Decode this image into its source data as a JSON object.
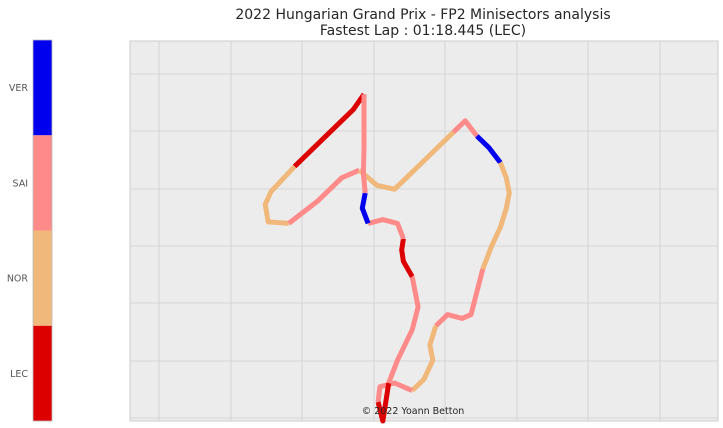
{
  "chart_data": {
    "type": "line",
    "title": "2022 Hungarian Grand Prix - FP2 Minisectors analysis",
    "subtitle": "Fastest Lap : 01:18.445 (LEC)",
    "credit": "© 2022 Yoann Betton",
    "grid": true,
    "legend": {
      "placement": "left colorbar",
      "entries": [
        {
          "name": "VER",
          "color": "#0000ee"
        },
        {
          "name": "SAI",
          "color": "#ff8a8a"
        },
        {
          "name": "NOR",
          "color": "#f0b87a"
        },
        {
          "name": "LEC",
          "color": "#dd0000"
        }
      ]
    },
    "track": {
      "points": [
        [
          39.8,
          7.0
        ],
        [
          38.0,
          9.0
        ],
        [
          34.0,
          12.0
        ],
        [
          28.0,
          16.5
        ],
        [
          24.0,
          19.8
        ],
        [
          23.0,
          21.5
        ],
        [
          23.5,
          23.8
        ],
        [
          27.0,
          24.0
        ],
        [
          32.0,
          21.0
        ],
        [
          36.0,
          18.0
        ],
        [
          39.0,
          17.0
        ],
        [
          42.0,
          19.0
        ],
        [
          45.0,
          19.5
        ],
        [
          47.0,
          18.0
        ],
        [
          51.0,
          15.0
        ],
        [
          55.0,
          12.0
        ],
        [
          57.0,
          10.5
        ],
        [
          58.0,
          11.5
        ],
        [
          59.0,
          12.5
        ],
        [
          61.0,
          14.0
        ],
        [
          63.0,
          16.0
        ],
        [
          64.0,
          18.0
        ],
        [
          64.5,
          20.0
        ],
        [
          64.0,
          22.0
        ],
        [
          63.0,
          24.5
        ],
        [
          61.5,
          27.0
        ],
        [
          60.0,
          30.0
        ],
        [
          59.0,
          33.0
        ],
        [
          58.0,
          36.0
        ],
        [
          56.5,
          36.5
        ],
        [
          54.0,
          36.0
        ],
        [
          52.0,
          37.5
        ],
        [
          51.0,
          40.0
        ],
        [
          51.5,
          42.0
        ],
        [
          50.0,
          44.5
        ],
        [
          48.0,
          46.0
        ],
        [
          45.0,
          45.0
        ],
        [
          42.5,
          45.5
        ],
        [
          42.2,
          47.5
        ],
        [
          43.0,
          50.0
        ],
        [
          43.5,
          47.5
        ],
        [
          44.0,
          45.0
        ],
        [
          45.5,
          42.0
        ],
        [
          48.0,
          38.0
        ],
        [
          49.0,
          35.0
        ],
        [
          48.0,
          31.0
        ],
        [
          46.5,
          29.0
        ],
        [
          46.2,
          27.5
        ],
        [
          46.5,
          26.0
        ],
        [
          45.5,
          24.0
        ],
        [
          43.0,
          23.5
        ],
        [
          40.5,
          24.0
        ],
        [
          39.5,
          22.0
        ],
        [
          40.0,
          20.0
        ],
        [
          39.7,
          17.5
        ],
        [
          39.8,
          14.0
        ],
        [
          39.8,
          10.0
        ],
        [
          39.8,
          7.0
        ]
      ],
      "sectors": [
        {
          "from": 0,
          "to": 3,
          "driver": "LEC"
        },
        {
          "from": 3,
          "to": 7,
          "driver": "NOR"
        },
        {
          "from": 7,
          "to": 10,
          "driver": "SAI"
        },
        {
          "from": 10,
          "to": 15,
          "driver": "NOR"
        },
        {
          "from": 15,
          "to": 18,
          "driver": "SAI"
        },
        {
          "from": 18,
          "to": 20,
          "driver": "VER"
        },
        {
          "from": 20,
          "to": 26,
          "driver": "NOR"
        },
        {
          "from": 26,
          "to": 31,
          "driver": "SAI"
        },
        {
          "from": 31,
          "to": 35,
          "driver": "NOR"
        },
        {
          "from": 35,
          "to": 38,
          "driver": "SAI"
        },
        {
          "from": 38,
          "to": 41,
          "driver": "LEC"
        },
        {
          "from": 41,
          "to": 45,
          "driver": "SAI"
        },
        {
          "from": 45,
          "to": 48,
          "driver": "LEC"
        },
        {
          "from": 48,
          "to": 51,
          "driver": "SAI"
        },
        {
          "from": 51,
          "to": 53,
          "driver": "VER"
        },
        {
          "from": 53,
          "to": 57,
          "driver": "SAI"
        }
      ]
    }
  }
}
